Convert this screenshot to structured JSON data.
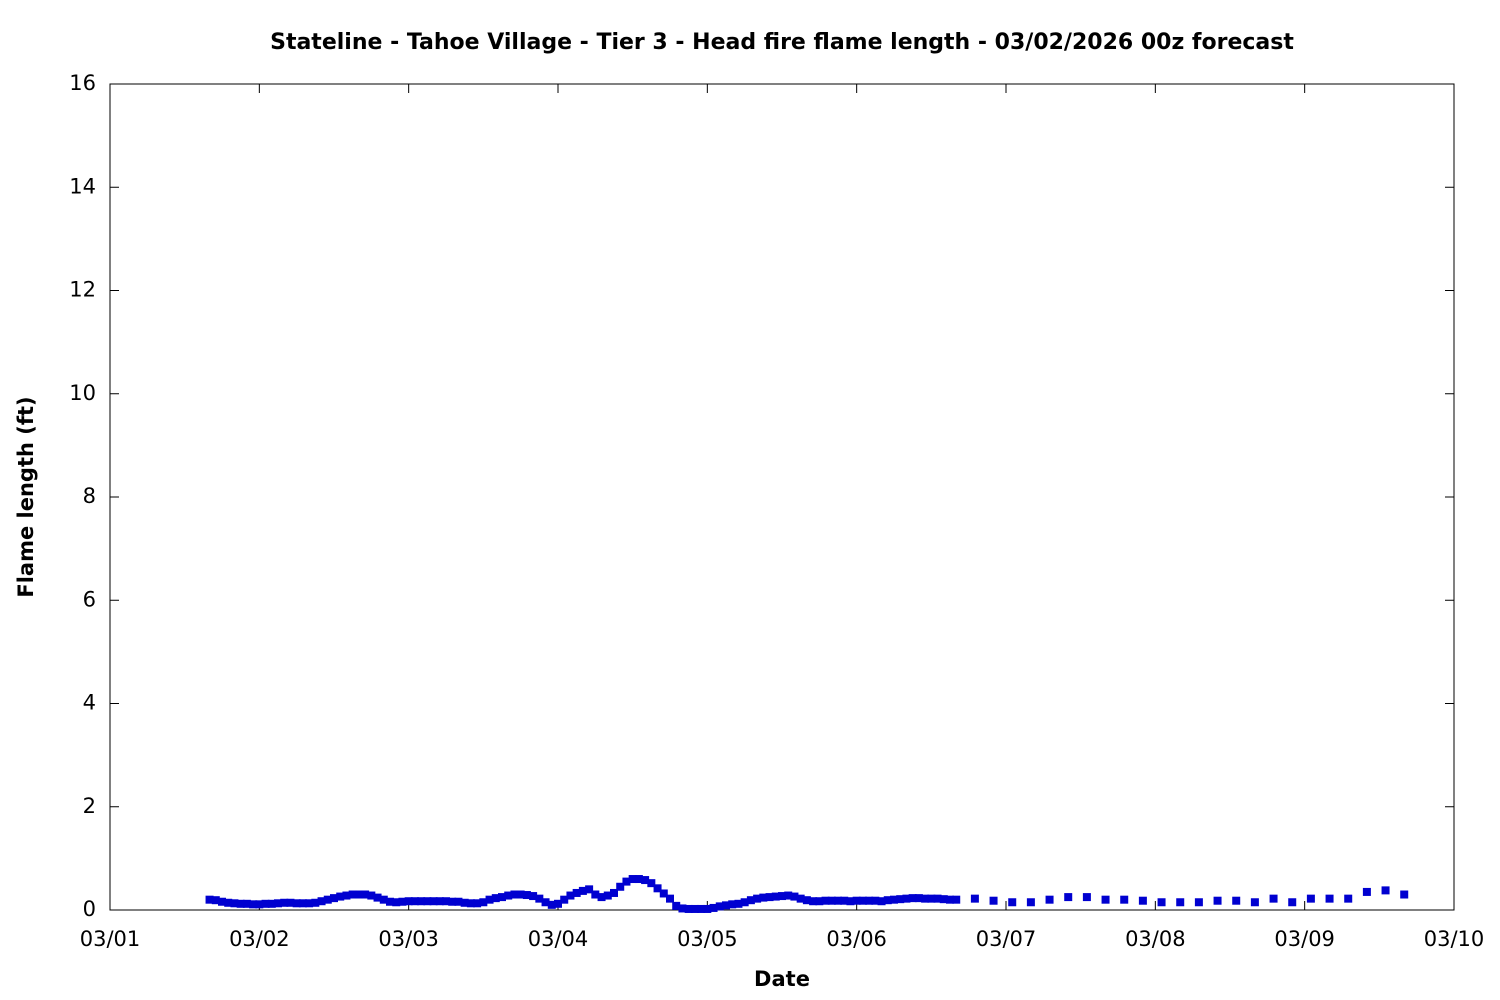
{
  "chart_data": {
    "type": "scatter",
    "title": "Stateline - Tahoe Village - Tier 3 - Head fire flame length - 03/02/2026 00z forecast",
    "x_label": "Date",
    "y_label": "Flame length (ft)",
    "color": "#0000d0",
    "xlim": [
      0,
      216
    ],
    "xticks": [
      {
        "value": 0,
        "label": "03/01"
      },
      {
        "value": 24,
        "label": "03/02"
      },
      {
        "value": 48,
        "label": "03/03"
      },
      {
        "value": 72,
        "label": "03/04"
      },
      {
        "value": 96,
        "label": "03/05"
      },
      {
        "value": 120,
        "label": "03/06"
      },
      {
        "value": 144,
        "label": "03/07"
      },
      {
        "value": 168,
        "label": "03/08"
      },
      {
        "value": 192,
        "label": "03/09"
      },
      {
        "value": 216,
        "label": "03/10"
      }
    ],
    "ylim": [
      0,
      16
    ],
    "yticks": [
      0,
      2,
      4,
      6,
      8,
      10,
      12,
      14,
      16
    ],
    "x": [
      16,
      17,
      18,
      19,
      20,
      21,
      22,
      23,
      24,
      25,
      26,
      27,
      28,
      29,
      30,
      31,
      32,
      33,
      34,
      35,
      36,
      37,
      38,
      39,
      40,
      41,
      42,
      43,
      44,
      45,
      46,
      47,
      48,
      49,
      50,
      51,
      52,
      53,
      54,
      55,
      56,
      57,
      58,
      59,
      60,
      61,
      62,
      63,
      64,
      65,
      66,
      67,
      68,
      69,
      70,
      71,
      72,
      73,
      74,
      75,
      76,
      77,
      78,
      79,
      80,
      81,
      82,
      83,
      84,
      85,
      86,
      87,
      88,
      89,
      90,
      91,
      92,
      93,
      94,
      95,
      96,
      97,
      98,
      99,
      100,
      101,
      102,
      103,
      104,
      105,
      106,
      107,
      108,
      109,
      110,
      111,
      112,
      113,
      114,
      115,
      116,
      117,
      118,
      119,
      120,
      121,
      122,
      123,
      124,
      125,
      126,
      127,
      128,
      129,
      130,
      131,
      132,
      133,
      134,
      135,
      136,
      139,
      142,
      145,
      148,
      151,
      154,
      157,
      160,
      163,
      166,
      169,
      172,
      175,
      178,
      181,
      184,
      187,
      190,
      193,
      196,
      199,
      202,
      205,
      208
    ],
    "values": [
      0.2,
      0.19,
      0.16,
      0.14,
      0.13,
      0.12,
      0.12,
      0.11,
      0.11,
      0.12,
      0.12,
      0.13,
      0.14,
      0.14,
      0.13,
      0.13,
      0.13,
      0.14,
      0.17,
      0.2,
      0.23,
      0.26,
      0.28,
      0.3,
      0.3,
      0.3,
      0.28,
      0.24,
      0.2,
      0.16,
      0.15,
      0.16,
      0.17,
      0.17,
      0.17,
      0.17,
      0.17,
      0.17,
      0.17,
      0.16,
      0.16,
      0.14,
      0.13,
      0.13,
      0.15,
      0.2,
      0.23,
      0.25,
      0.28,
      0.3,
      0.3,
      0.29,
      0.27,
      0.22,
      0.15,
      0.1,
      0.12,
      0.2,
      0.28,
      0.33,
      0.37,
      0.4,
      0.3,
      0.25,
      0.28,
      0.33,
      0.45,
      0.55,
      0.6,
      0.6,
      0.58,
      0.52,
      0.42,
      0.32,
      0.22,
      0.08,
      0.03,
      0.02,
      0.02,
      0.02,
      0.02,
      0.04,
      0.07,
      0.09,
      0.11,
      0.12,
      0.15,
      0.19,
      0.22,
      0.24,
      0.25,
      0.26,
      0.27,
      0.28,
      0.26,
      0.22,
      0.19,
      0.17,
      0.17,
      0.18,
      0.18,
      0.18,
      0.18,
      0.17,
      0.18,
      0.18,
      0.18,
      0.18,
      0.17,
      0.19,
      0.2,
      0.21,
      0.22,
      0.23,
      0.23,
      0.22,
      0.22,
      0.22,
      0.21,
      0.2,
      0.2,
      0.22,
      0.18,
      0.15,
      0.15,
      0.2,
      0.25,
      0.25,
      0.2,
      0.2,
      0.18,
      0.15,
      0.15,
      0.15,
      0.18,
      0.18,
      0.15,
      0.22,
      0.15,
      0.22,
      0.22,
      0.22,
      0.35,
      0.38,
      0.3
    ]
  }
}
